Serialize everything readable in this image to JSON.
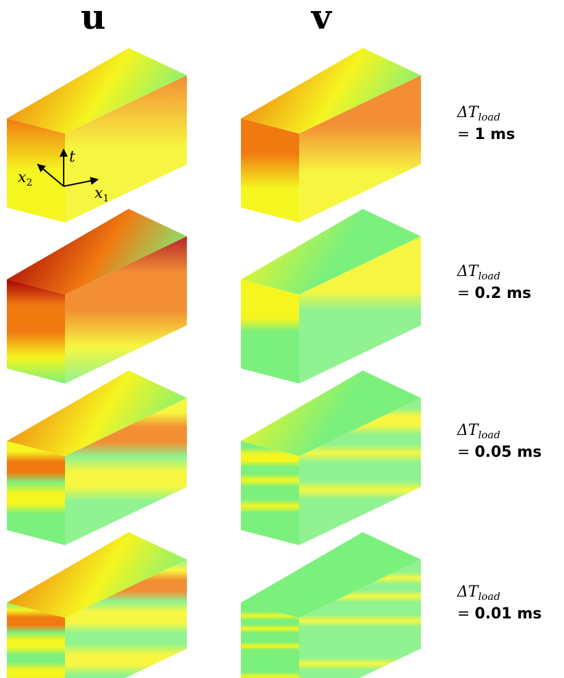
{
  "columns": [
    {
      "label": "u"
    },
    {
      "label": "v"
    }
  ],
  "axes": {
    "x1": "x",
    "x1_sub": "1",
    "x2": "x",
    "x2_sub": "2",
    "t": "t"
  },
  "rows": [
    {
      "delta": "Δ",
      "T": "T",
      "sub": "load",
      "eq": "=",
      "value": "1 ms",
      "u": {
        "top": 0.8,
        "layers": 2,
        "noise": 0.1
      },
      "v": {
        "top": 0.78,
        "layers": 3,
        "noise": 0.1
      }
    },
    {
      "delta": "Δ",
      "T": "T",
      "sub": "load",
      "eq": "=",
      "value": "0.2 ms",
      "u": {
        "top": 0.95,
        "layers": 4,
        "noise": 0.2
      },
      "v": {
        "top": 0.55,
        "layers": 8,
        "noise": 0.35
      }
    },
    {
      "delta": "Δ",
      "T": "T",
      "sub": "load",
      "eq": "=",
      "value": "0.05 ms",
      "u": {
        "top": 0.75,
        "layers": 10,
        "noise": 0.5
      },
      "v": {
        "top": 0.35,
        "layers": 16,
        "noise": 0.6
      }
    },
    {
      "delta": "Δ",
      "T": "T",
      "sub": "load",
      "eq": "=",
      "value": "0.01 ms",
      "u": {
        "top": 0.65,
        "layers": 14,
        "noise": 0.7
      },
      "v": {
        "top": 0.25,
        "layers": 24,
        "noise": 0.8
      }
    }
  ],
  "colors": {
    "low": "#7cf07c",
    "mid": "#f5f520",
    "high": "#f07a10",
    "peak": "#a80008"
  }
}
